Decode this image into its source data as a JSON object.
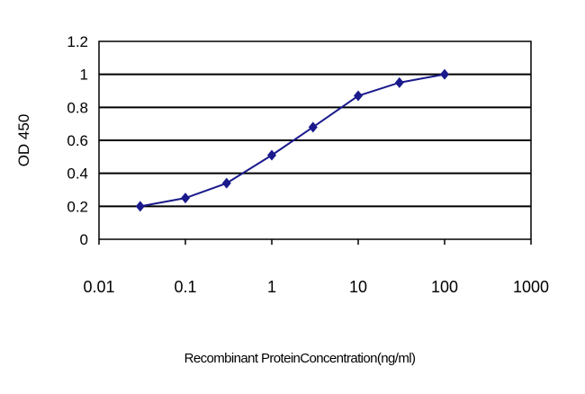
{
  "chart_data": {
    "type": "line",
    "title": "",
    "xlabel": "Recombinant ProteinConcentration(ng/ml)",
    "ylabel": "OD 450",
    "xscale": "log",
    "xlim": [
      0.01,
      1000
    ],
    "ylim": [
      0,
      1.2
    ],
    "xticks": [
      "0.01",
      "0.1",
      "1",
      "10",
      "100",
      "1000"
    ],
    "yticks": [
      "0",
      "0.2",
      "0.4",
      "0.6",
      "0.8",
      "1",
      "1.2"
    ],
    "grid": "horizontal",
    "series": [
      {
        "x": [
          0.03,
          0.1,
          0.3,
          1,
          3,
          10,
          30,
          100
        ],
        "y": [
          0.2,
          0.25,
          0.34,
          0.51,
          0.68,
          0.87,
          0.95,
          1.0
        ],
        "color": "#1a1a8c",
        "marker": "diamond"
      }
    ]
  }
}
